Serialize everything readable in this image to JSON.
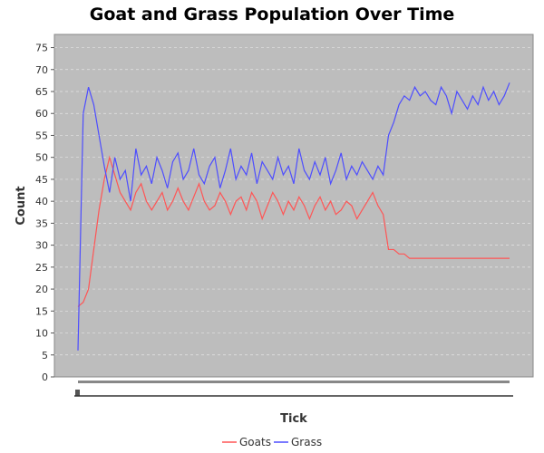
{
  "chart_data": {
    "type": "line",
    "title": "Goat and Grass Population Over Time",
    "xlabel": "Tick",
    "ylabel": "Count",
    "ylim": [
      0,
      78
    ],
    "y_ticks": [
      0,
      5,
      10,
      15,
      20,
      25,
      30,
      35,
      40,
      45,
      50,
      55,
      60,
      65,
      70,
      75
    ],
    "grid": true,
    "plot_background": "#bdbdbd",
    "legend_position": "bottom-center",
    "series": [
      {
        "name": "Goats",
        "color": "#ff5555",
        "values": [
          16,
          17,
          20,
          29,
          38,
          45,
          50,
          46,
          42,
          40,
          38,
          42,
          44,
          40,
          38,
          40,
          42,
          38,
          40,
          43,
          40,
          38,
          41,
          44,
          40,
          38,
          39,
          42,
          40,
          37,
          40,
          41,
          38,
          42,
          40,
          36,
          39,
          42,
          40,
          37,
          40,
          38,
          41,
          39,
          36,
          39,
          41,
          38,
          40,
          37,
          38,
          40,
          39,
          36,
          38,
          40,
          42,
          39,
          37,
          29,
          29,
          28,
          28,
          27,
          27,
          27,
          27,
          27,
          27,
          27,
          27,
          27,
          27,
          27,
          27,
          27,
          27,
          27,
          27,
          27,
          27,
          27,
          27
        ]
      },
      {
        "name": "Grass",
        "color": "#4d4dff",
        "values": [
          6,
          60,
          66,
          62,
          55,
          48,
          42,
          50,
          45,
          47,
          40,
          52,
          46,
          48,
          44,
          50,
          47,
          43,
          49,
          51,
          45,
          47,
          52,
          46,
          44,
          48,
          50,
          43,
          47,
          52,
          45,
          48,
          46,
          51,
          44,
          49,
          47,
          45,
          50,
          46,
          48,
          44,
          52,
          47,
          45,
          49,
          46,
          50,
          44,
          47,
          51,
          45,
          48,
          46,
          49,
          47,
          45,
          48,
          46,
          55,
          58,
          62,
          64,
          63,
          66,
          64,
          65,
          63,
          62,
          66,
          64,
          60,
          65,
          63,
          61,
          64,
          62,
          66,
          63,
          65,
          62,
          64,
          67
        ]
      }
    ]
  }
}
